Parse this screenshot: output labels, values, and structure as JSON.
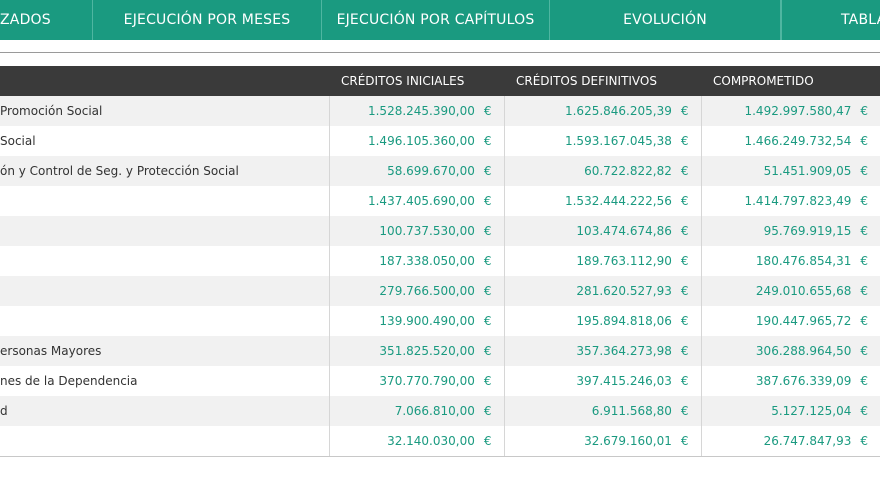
{
  "nav": {
    "tabs": [
      "ZADOS",
      "EJECUCIÓN POR MESES",
      "EJECUCIÓN POR CAPÍTULOS",
      "EVOLUCIÓN",
      "TABLA"
    ]
  },
  "table": {
    "headers": [
      "",
      "CRÉDITOS INICIALES",
      "CRÉDITOS DEFINITIVOS",
      "COMPROMETIDO"
    ],
    "currency": "€",
    "rows": [
      {
        "name": "Promoción Social",
        "v": [
          "1.528.245.390,00",
          "1.625.846.205,39",
          "1.492.997.580,47"
        ]
      },
      {
        "name": "Social",
        "v": [
          "1.496.105.360,00",
          "1.593.167.045,38",
          "1.466.249.732,54"
        ]
      },
      {
        "name": "ón y Control de Seg. y Protección Social",
        "v": [
          "58.699.670,00",
          "60.722.822,82",
          "51.451.909,05"
        ]
      },
      {
        "name": "",
        "v": [
          "1.437.405.690,00",
          "1.532.444.222,56",
          "1.414.797.823,49"
        ]
      },
      {
        "name": "",
        "v": [
          "100.737.530,00",
          "103.474.674,86",
          "95.769.919,15"
        ]
      },
      {
        "name": "",
        "v": [
          "187.338.050,00",
          "189.763.112,90",
          "180.476.854,31"
        ]
      },
      {
        "name": "",
        "v": [
          "279.766.500,00",
          "281.620.527,93",
          "249.010.655,68"
        ]
      },
      {
        "name": "",
        "v": [
          "139.900.490,00",
          "195.894.818,06",
          "190.447.965,72"
        ]
      },
      {
        "name": "ersonas Mayores",
        "v": [
          "351.825.520,00",
          "357.364.273,98",
          "306.288.964,50"
        ]
      },
      {
        "name": "nes de la Dependencia",
        "v": [
          "370.770.790,00",
          "397.415.246,03",
          "387.676.339,09"
        ]
      },
      {
        "name": "d",
        "v": [
          "7.066.810,00",
          "6.911.568,80",
          "5.127.125,04"
        ]
      },
      {
        "name": "",
        "v": [
          "32.140.030,00",
          "32.679.160,01",
          "26.747.847,93"
        ]
      }
    ]
  }
}
